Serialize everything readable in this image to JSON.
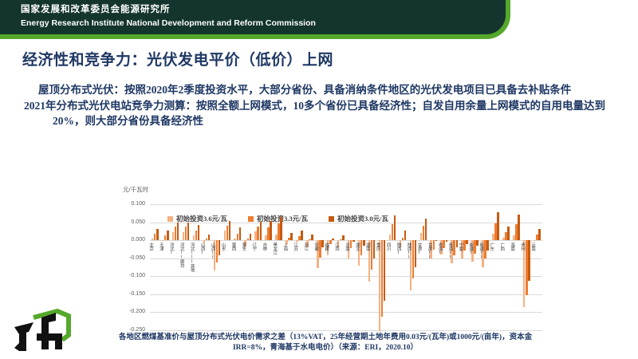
{
  "header": {
    "org_zh": "国家发展和改革委员会能源研究所",
    "org_en": "Energy Research Institute National Development and Reform Commission"
  },
  "slide": {
    "title": "经济性和竞争力：光伏发电平价（低价）上网",
    "bullets": [
      "屋顶分布式光伏：按照2020年2季度投资水平，大部分省份、具备消纳条件地区的光伏发电项目已具备去补贴条件",
      "2021年分布式光伏电站竞争力测算：按照全额上网模式，10多个省份已具备经济性；自发自用余量上网模式的自用电量达到20%，则大部分省份具备经济性"
    ],
    "caption_lines": [
      "各地区燃煤基准价与屋顶分布式光伏电价需求之差（13%VAT，25年经营期土地年费用0.03元/(瓦年)或1000元/(亩年)，资本金",
      "IRR=8%，青海基于水电电价）（来源：ERI，2020.10）"
    ]
  },
  "colors": {
    "header_bg": "#14352e",
    "accent_green": "#55a82b",
    "navy_text": "#1f3864",
    "grid": "#d9d9d9",
    "axis_text": "#595959"
  },
  "chart_data": {
    "type": "bar",
    "ylabel": "元/千瓦时",
    "ylim": [
      -0.27,
      0.1
    ],
    "yticks": [
      "0.100",
      "0.050",
      "0.000",
      "-0.050",
      "-0.100",
      "-0.150",
      "-0.200",
      "-0.250"
    ],
    "grid": true,
    "legend_position": "top-inside",
    "categories": [
      "北京",
      "天津",
      "河北I",
      "河北II廊坊",
      "河北III其他",
      "山西I",
      "山西II",
      "山东",
      "蒙西",
      "蒙东",
      "辽宁",
      "吉林",
      "黑龙江",
      "上海",
      "江苏",
      "浙江",
      "安徽",
      "福建",
      "江西",
      "河南",
      "湖北",
      "湖南",
      "重庆",
      "四川",
      "陕西I",
      "陕西II",
      "甘肃I",
      "甘肃II",
      "青海I",
      "青海II",
      "宁夏",
      "新疆I",
      "新疆II",
      "广东",
      "广西",
      "海南",
      "贵州",
      "云南"
    ],
    "series": [
      {
        "name": "初始投资3.6元/瓦",
        "color": "#f4b183",
        "values": [
          0.005,
          -0.003,
          0.023,
          0.023,
          0.014,
          -0.008,
          -0.085,
          0.027,
          0.004,
          -0.018,
          0.024,
          0.013,
          0.016,
          -0.012,
          -0.004,
          -0.02,
          -0.078,
          -0.043,
          -0.02,
          -0.05,
          -0.07,
          -0.115,
          -0.253,
          0.015,
          -0.02,
          -0.14,
          0.02,
          -0.05,
          -0.04,
          -0.065,
          -0.05,
          -0.06,
          -0.075,
          0.018,
          0.008,
          0.013,
          -0.187,
          -0.003
        ]
      },
      {
        "name": "初始投资3.3元/瓦",
        "color": "#ed7d31",
        "values": [
          0.018,
          0.013,
          0.037,
          0.037,
          0.028,
          0.004,
          -0.063,
          0.04,
          0.019,
          0.004,
          0.038,
          0.036,
          0.046,
          0.006,
          0.012,
          0.002,
          -0.048,
          -0.012,
          0.002,
          -0.022,
          -0.042,
          -0.082,
          -0.213,
          0.045,
          0.006,
          -0.106,
          0.04,
          -0.026,
          -0.022,
          -0.042,
          -0.028,
          -0.038,
          -0.05,
          0.047,
          0.022,
          0.044,
          -0.152,
          0.015
        ]
      },
      {
        "name": "初始投资3.0元/瓦",
        "color": "#c55a11",
        "values": [
          0.031,
          0.027,
          0.05,
          0.05,
          0.042,
          0.016,
          -0.042,
          0.054,
          0.035,
          0.019,
          0.051,
          0.054,
          0.064,
          0.021,
          0.026,
          0.017,
          -0.02,
          0.004,
          0.014,
          -0.004,
          -0.016,
          -0.05,
          -0.168,
          0.07,
          0.027,
          -0.075,
          0.06,
          -0.002,
          -0.005,
          -0.02,
          -0.01,
          -0.015,
          -0.028,
          0.077,
          0.037,
          0.072,
          -0.113,
          0.031
        ]
      }
    ]
  }
}
